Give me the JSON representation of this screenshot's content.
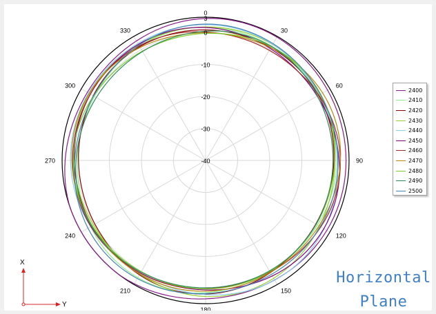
{
  "chart_data": {
    "type": "polar-line",
    "title": "",
    "angular_ticks": [
      "0",
      "30",
      "60",
      "90",
      "120",
      "150",
      "180",
      "210",
      "240",
      "270",
      "300",
      "330"
    ],
    "radial_ticks": [
      "3",
      "0",
      "-10",
      "-20",
      "-30",
      "-40"
    ],
    "radial_range": [
      -40,
      3
    ],
    "grid": true,
    "legend_position": "right",
    "series": [
      {
        "name": "2400",
        "color": "#8b1a8b",
        "gain_dB": 2.4
      },
      {
        "name": "2410",
        "color": "#90ee90",
        "gain_dB": 0.6
      },
      {
        "name": "2420",
        "color": "#8b0000",
        "gain_dB": 0.3
      },
      {
        "name": "2430",
        "color": "#9acd32",
        "gain_dB": 0.9
      },
      {
        "name": "2440",
        "color": "#87ceeb",
        "gain_dB": 1.2
      },
      {
        "name": "2450",
        "color": "#800080",
        "gain_dB": 0.8
      },
      {
        "name": "2460",
        "color": "#a52a2a",
        "gain_dB": 0.5
      },
      {
        "name": "2470",
        "color": "#b8860b",
        "gain_dB": 0.7
      },
      {
        "name": "2480",
        "color": "#7ccd2a",
        "gain_dB": 0.2
      },
      {
        "name": "2490",
        "color": "#2e8b57",
        "gain_dB": 0.0
      },
      {
        "name": "2500",
        "color": "#4682b4",
        "gain_dB": 1.0
      }
    ]
  },
  "annotation": {
    "plane_line1": "Horizontal",
    "plane_line2": "Plane"
  },
  "axes_indicator": {
    "x_label": "X",
    "y_label": "Y",
    "color": "#e02020"
  }
}
